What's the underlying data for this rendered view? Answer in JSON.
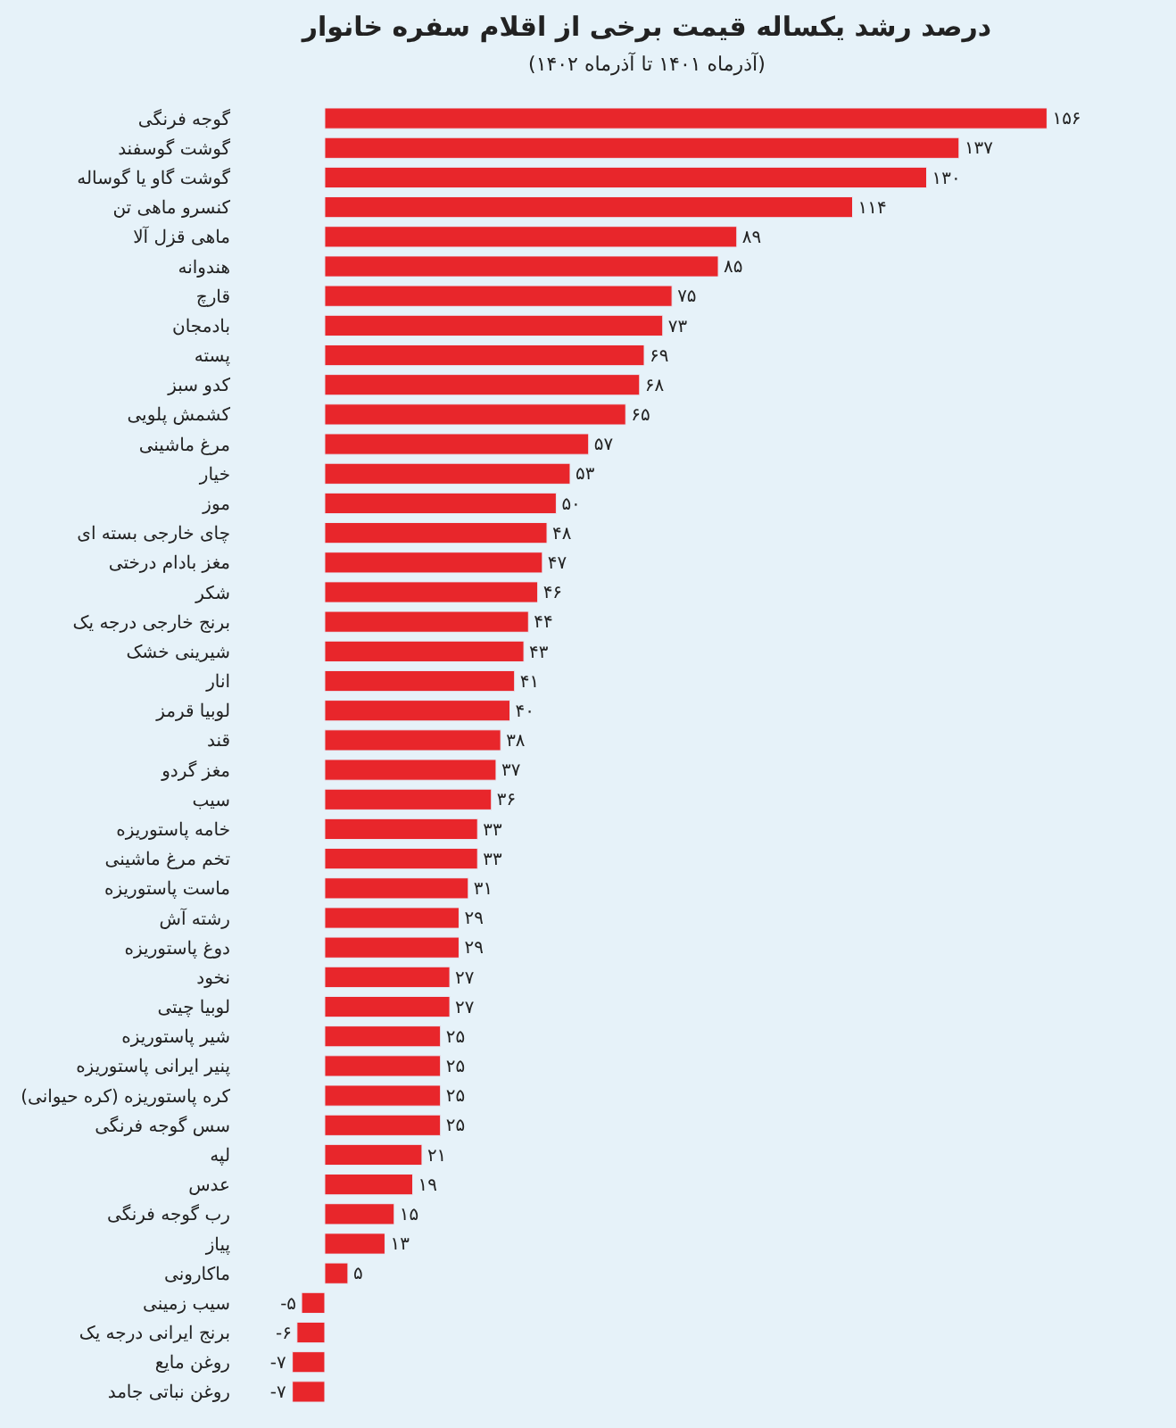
{
  "chart_data": {
    "type": "bar",
    "orientation": "horizontal",
    "title": "درصد رشد یکساله قیمت برخی از اقلام سفره خانوار",
    "subtitle": "(آذرماه ۱۴۰۱ تا آذرماه ۱۴۰۲)",
    "categories": [
      "گوجه فرنگی",
      "گوشت گوسفند",
      "گوشت گاو یا گوساله",
      "کنسرو ماهی تن",
      "ماهی قزل آلا",
      "هندوانه",
      "قارچ",
      "بادمجان",
      "پسته",
      "کدو سبز",
      "کشمش پلویی",
      "مرغ ماشینی",
      "خیار",
      "موز",
      "چای خارجی بسته ای",
      "مغز بادام درختی",
      "شکر",
      "برنج خارجی درجه یک",
      "شیرینی خشک",
      "انار",
      "لوبیا قرمز",
      "قند",
      "مغز گردو",
      "سیب",
      "خامه پاستوریزه",
      "تخم مرغ ماشینی",
      "ماست پاستوریزه",
      "رشته آش",
      "دوغ پاستوریزه",
      "نخود",
      "لوبیا چیتی",
      "شیر پاستوریزه",
      "پنیر ایرانی پاستوریزه",
      "کره پاستوریزه (کره حیوانی)",
      "سس گوجه فرنگی",
      "لپه",
      "عدس",
      "رب گوجه فرنگی",
      "پیاز",
      "ماکارونی",
      "سیب زمینی",
      "برنج ایرانی درجه یک",
      "روغن مایع",
      "روغن نباتی جامد"
    ],
    "values": [
      156,
      137,
      130,
      114,
      89,
      85,
      75,
      73,
      69,
      68,
      65,
      57,
      53,
      50,
      48,
      47,
      46,
      44,
      43,
      41,
      40,
      38,
      37,
      36,
      33,
      33,
      31,
      29,
      29,
      27,
      27,
      25,
      25,
      25,
      25,
      21,
      19,
      15,
      13,
      5,
      -5,
      -6,
      -7,
      -7
    ],
    "value_labels": [
      "۱۵۶",
      "۱۳۷",
      "۱۳۰",
      "۱۱۴",
      "۸۹",
      "۸۵",
      "۷۵",
      "۷۳",
      "۶۹",
      "۶۸",
      "۶۵",
      "۵۷",
      "۵۳",
      "۵۰",
      "۴۸",
      "۴۷",
      "۴۶",
      "۴۴",
      "۴۳",
      "۴۱",
      "۴۰",
      "۳۸",
      "۳۷",
      "۳۶",
      "۳۳",
      "۳۳",
      "۳۱",
      "۲۹",
      "۲۹",
      "۲۷",
      "۲۷",
      "۲۵",
      "۲۵",
      "۲۵",
      "۲۵",
      "۲۱",
      "۱۹",
      "۱۵",
      "۱۳",
      "۵",
      "-۵",
      "-۶",
      "-۷",
      "-۷"
    ],
    "color": "#e8262b",
    "legend": false
  }
}
